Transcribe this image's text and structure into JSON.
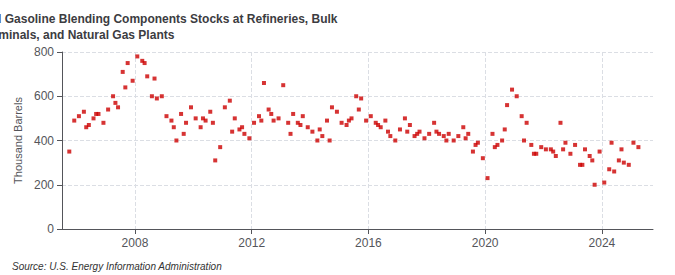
{
  "chart_data": {
    "type": "scatter",
    "title": "Monthly Kentucky Reformulated Gasoline Blending Components Stocks at Refineries, Bulk\nTerminals, and Natural Gas Plants",
    "ylabel": "Thousand Barrels",
    "annotations": [
      "Source: U.S. Energy Information Administration"
    ],
    "color": "#cc0000",
    "marker": "square",
    "grid": true,
    "xlim": [
      2005.5,
      2025.75
    ],
    "xticks": [
      2008,
      2012,
      2016,
      2020,
      2024
    ],
    "ylim": [
      0,
      800
    ],
    "yticks": [
      0,
      200,
      400,
      600,
      800
    ],
    "x": [
      2005.75,
      2005.92,
      2006.08,
      2006.25,
      2006.33,
      2006.42,
      2006.58,
      2006.67,
      2006.75,
      2006.92,
      2007.08,
      2007.25,
      2007.33,
      2007.42,
      2007.58,
      2007.67,
      2007.75,
      2007.92,
      2008.08,
      2008.25,
      2008.33,
      2008.42,
      2008.58,
      2008.67,
      2008.75,
      2008.92,
      2009.08,
      2009.25,
      2009.33,
      2009.42,
      2009.58,
      2009.67,
      2009.75,
      2009.92,
      2010.08,
      2010.25,
      2010.33,
      2010.42,
      2010.58,
      2010.67,
      2010.75,
      2010.92,
      2011.08,
      2011.25,
      2011.33,
      2011.42,
      2011.58,
      2011.67,
      2011.75,
      2011.92,
      2012.08,
      2012.25,
      2012.33,
      2012.42,
      2012.58,
      2012.67,
      2012.75,
      2012.92,
      2013.08,
      2013.25,
      2013.33,
      2013.42,
      2013.58,
      2013.67,
      2013.75,
      2013.92,
      2014.08,
      2014.25,
      2014.33,
      2014.42,
      2014.58,
      2014.67,
      2014.75,
      2014.92,
      2015.08,
      2015.25,
      2015.33,
      2015.42,
      2015.58,
      2015.67,
      2015.75,
      2015.92,
      2016.08,
      2016.25,
      2016.33,
      2016.42,
      2016.58,
      2016.67,
      2016.75,
      2016.92,
      2017.08,
      2017.25,
      2017.33,
      2017.42,
      2017.58,
      2017.67,
      2017.75,
      2017.92,
      2018.08,
      2018.25,
      2018.33,
      2018.42,
      2018.58,
      2018.67,
      2018.75,
      2018.92,
      2019.08,
      2019.25,
      2019.33,
      2019.42,
      2019.58,
      2019.67,
      2019.75,
      2019.92,
      2020.08,
      2020.25,
      2020.33,
      2020.42,
      2020.58,
      2020.67,
      2020.75,
      2020.92,
      2021.08,
      2021.25,
      2021.33,
      2021.42,
      2021.58,
      2021.67,
      2021.75,
      2021.92,
      2022.08,
      2022.25,
      2022.33,
      2022.42,
      2022.58,
      2022.67,
      2022.75,
      2022.92,
      2023.08,
      2023.25,
      2023.33,
      2023.42,
      2023.58,
      2023.67,
      2023.75,
      2023.92,
      2024.08,
      2024.25,
      2024.33,
      2024.42,
      2024.58,
      2024.67,
      2024.75,
      2024.92,
      2025.08,
      2025.25
    ],
    "values": [
      350,
      490,
      510,
      530,
      460,
      470,
      500,
      520,
      520,
      480,
      540,
      600,
      570,
      550,
      710,
      640,
      750,
      670,
      780,
      760,
      750,
      690,
      600,
      680,
      590,
      600,
      510,
      490,
      460,
      400,
      520,
      430,
      480,
      550,
      500,
      460,
      500,
      490,
      530,
      480,
      310,
      370,
      550,
      580,
      440,
      500,
      450,
      460,
      430,
      410,
      480,
      510,
      490,
      660,
      540,
      520,
      490,
      500,
      650,
      480,
      430,
      520,
      480,
      470,
      510,
      460,
      440,
      400,
      450,
      420,
      490,
      400,
      550,
      530,
      480,
      470,
      490,
      500,
      600,
      540,
      590,
      490,
      510,
      480,
      470,
      460,
      490,
      440,
      420,
      400,
      450,
      500,
      440,
      470,
      420,
      430,
      440,
      410,
      430,
      480,
      440,
      430,
      420,
      400,
      430,
      400,
      420,
      460,
      410,
      430,
      350,
      380,
      390,
      320,
      230,
      430,
      370,
      380,
      400,
      450,
      560,
      630,
      600,
      510,
      400,
      480,
      380,
      340,
      340,
      370,
      360,
      360,
      350,
      330,
      480,
      360,
      390,
      340,
      380,
      290,
      290,
      360,
      330,
      310,
      200,
      350,
      210,
      270,
      390,
      260,
      310,
      360,
      300,
      290,
      390,
      370
    ]
  }
}
